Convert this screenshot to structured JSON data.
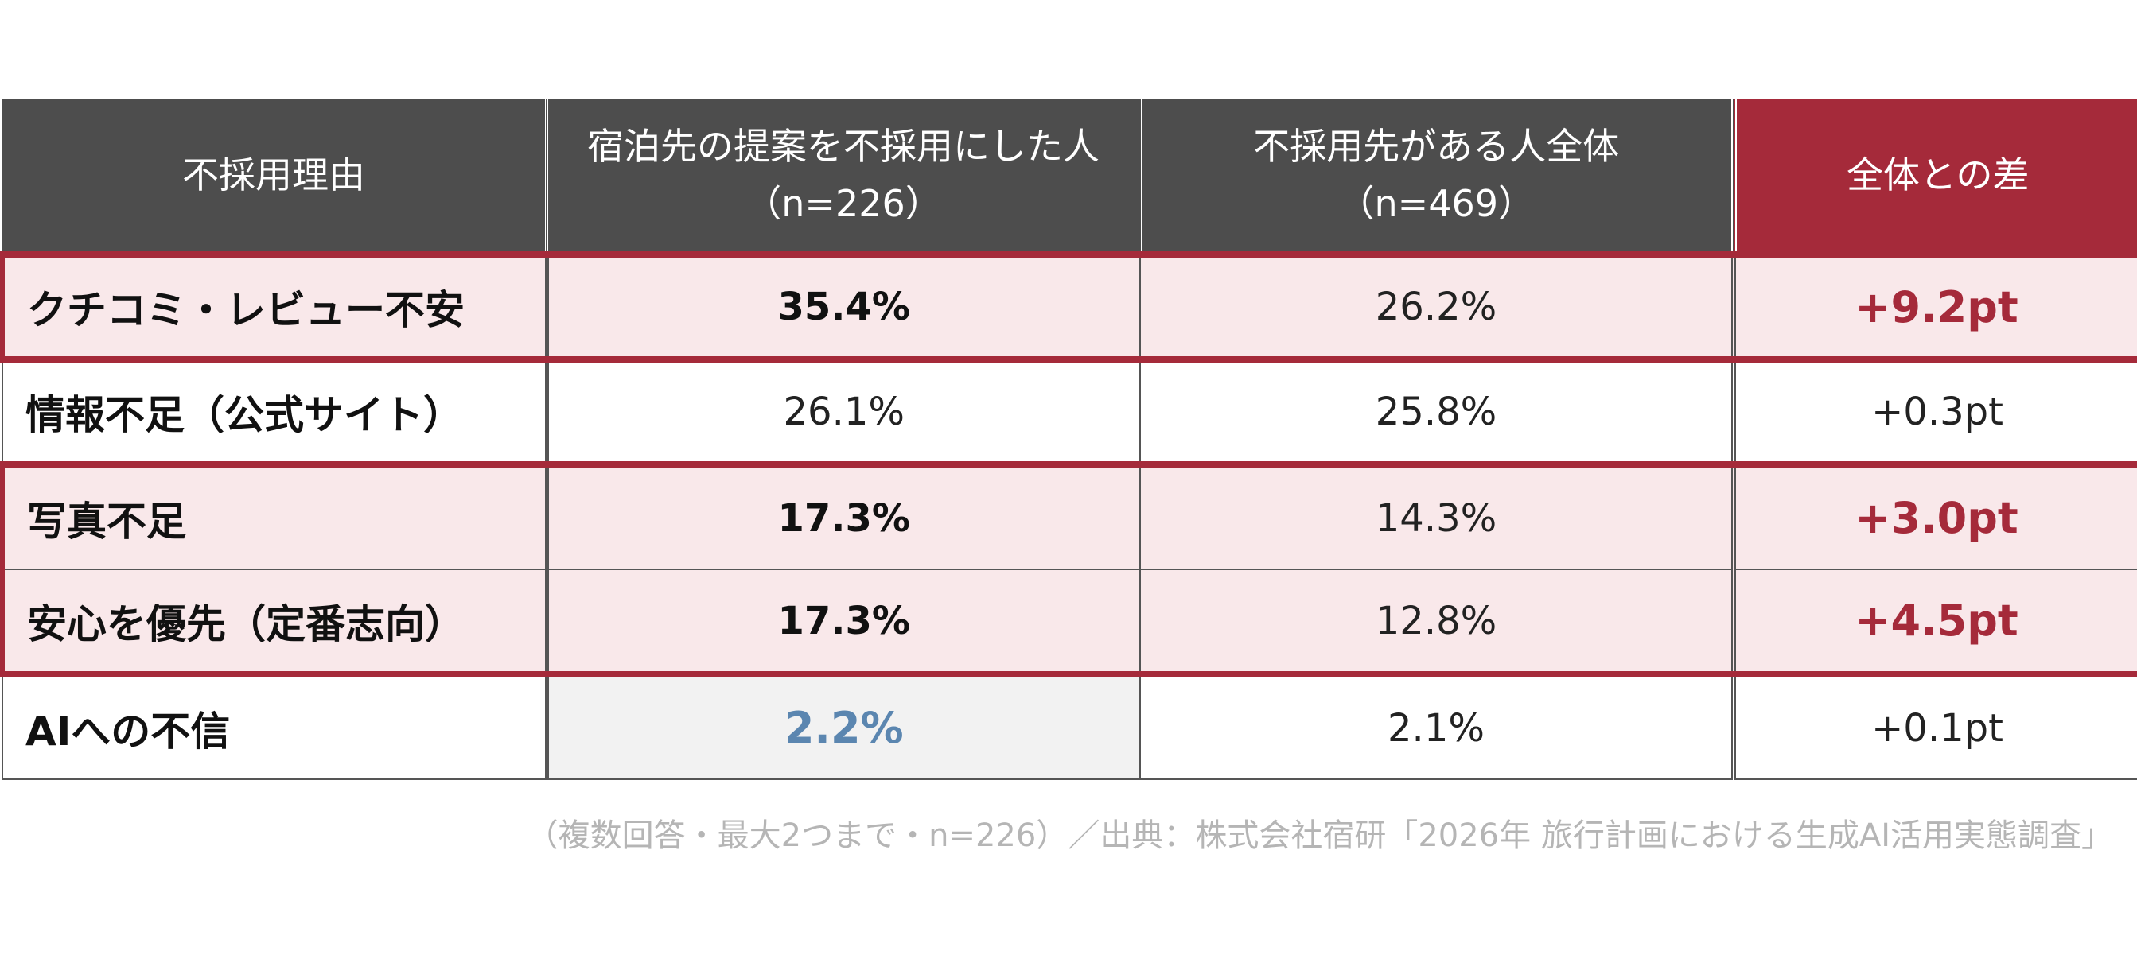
{
  "chart_data": {
    "type": "table",
    "columns": [
      {
        "label": "不採用理由"
      },
      {
        "label": "宿泊先の提案を不採用にした人",
        "sub": "（n=226）"
      },
      {
        "label": "不採用先がある人全体",
        "sub": "（n=469）"
      },
      {
        "label": "全体との差"
      }
    ],
    "rows": [
      {
        "reason": "クチコミ・レビュー不安",
        "rejected": "35.4%",
        "overall": "26.2%",
        "diff": "+9.2pt",
        "highlight": true
      },
      {
        "reason": "情報不足（公式サイト）",
        "rejected": "26.1%",
        "overall": "25.8%",
        "diff": "+0.3pt",
        "highlight": false
      },
      {
        "reason": "写真不足",
        "rejected": "17.3%",
        "overall": "14.3%",
        "diff": "+3.0pt",
        "highlight": true
      },
      {
        "reason": "安心を優先（定番志向）",
        "rejected": "17.3%",
        "overall": "12.8%",
        "diff": "+4.5pt",
        "highlight": true
      },
      {
        "reason": "AIへの不信",
        "rejected": "2.2%",
        "overall": "2.1%",
        "diff": "+0.1pt",
        "highlight": false
      }
    ],
    "note": "（複数回答・最大2つまで・n=226）／出典：株式会社宿研「2026年 旅行計画における生成AI活用実態調査」"
  },
  "colors": {
    "header_bg": "#4d4d4d",
    "accent": "#a52a3a",
    "highlight_bg": "#f9e8ea",
    "low_value": "#5b86b0",
    "note": "#b5b5b5"
  }
}
